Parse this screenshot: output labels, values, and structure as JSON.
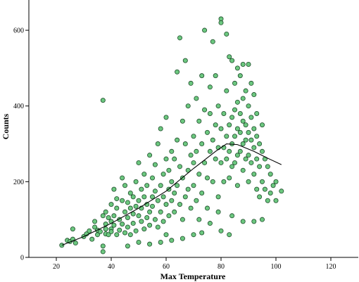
{
  "chart_data": {
    "type": "scatter",
    "title": "",
    "xlabel": "Max Temperature",
    "ylabel": "Counts",
    "xlim": [
      10,
      130
    ],
    "ylim": [
      0,
      680
    ],
    "x_ticks": [
      20,
      40,
      60,
      80,
      100,
      120
    ],
    "y_ticks": [
      0,
      200,
      400,
      600
    ],
    "grid": false,
    "legend": "none",
    "colors": {
      "point_fill": "#6cc77f",
      "point_stroke": "#1e4d2b",
      "fit_line": "#000000",
      "axis": "#000000"
    },
    "fit_line": {
      "type": "loess",
      "points": [
        [
          22,
          32
        ],
        [
          30,
          55
        ],
        [
          40,
          90
        ],
        [
          50,
          130
        ],
        [
          60,
          175
        ],
        [
          70,
          235
        ],
        [
          78,
          280
        ],
        [
          82,
          300
        ],
        [
          86,
          298
        ],
        [
          92,
          280
        ],
        [
          97,
          262
        ],
        [
          102,
          245
        ]
      ]
    },
    "series": [
      {
        "points": [
          [
            22,
            32
          ],
          [
            24,
            45
          ],
          [
            25,
            42
          ],
          [
            26,
            48
          ],
          [
            26,
            75
          ],
          [
            27,
            38
          ],
          [
            30,
            55
          ],
          [
            31,
            62
          ],
          [
            32,
            70
          ],
          [
            33,
            48
          ],
          [
            34,
            80
          ],
          [
            34,
            95
          ],
          [
            35,
            60
          ],
          [
            35,
            72
          ],
          [
            36,
            68
          ],
          [
            37,
            110
          ],
          [
            37,
            415
          ],
          [
            37,
            30
          ],
          [
            37,
            15
          ],
          [
            38,
            75
          ],
          [
            38,
            62
          ],
          [
            38,
            120
          ],
          [
            38,
            88
          ],
          [
            39,
            105
          ],
          [
            39,
            60
          ],
          [
            40,
            140
          ],
          [
            40,
            75
          ],
          [
            40,
            95
          ],
          [
            40,
            68
          ],
          [
            41,
            180
          ],
          [
            41,
            110
          ],
          [
            41,
            85
          ],
          [
            42,
            130
          ],
          [
            42,
            60
          ],
          [
            42,
            155
          ],
          [
            43,
            100
          ],
          [
            43,
            72
          ],
          [
            44,
            150
          ],
          [
            44,
            210
          ],
          [
            44,
            88
          ],
          [
            45,
            120
          ],
          [
            45,
            65
          ],
          [
            45,
            190
          ],
          [
            46,
            145
          ],
          [
            46,
            105
          ],
          [
            46,
            80
          ],
          [
            47,
            170
          ],
          [
            47,
            60
          ],
          [
            47,
            130
          ],
          [
            48,
            115
          ],
          [
            48,
            160
          ],
          [
            48,
            90
          ],
          [
            49,
            200
          ],
          [
            49,
            135
          ],
          [
            49,
            70
          ],
          [
            50,
            150
          ],
          [
            50,
            110
          ],
          [
            50,
            250
          ],
          [
            51,
            180
          ],
          [
            51,
            95
          ],
          [
            51,
            130
          ],
          [
            52,
            220
          ],
          [
            52,
            160
          ],
          [
            52,
            75
          ],
          [
            53,
            140
          ],
          [
            53,
            105
          ],
          [
            53,
            190
          ],
          [
            54,
            270
          ],
          [
            54,
            120
          ],
          [
            54,
            85
          ],
          [
            55,
            160
          ],
          [
            55,
            210
          ],
          [
            55,
            135
          ],
          [
            56,
            100
          ],
          [
            56,
            245
          ],
          [
            56,
            175
          ],
          [
            57,
            300
          ],
          [
            57,
            150
          ],
          [
            57,
            80
          ],
          [
            58,
            340
          ],
          [
            58,
            190
          ],
          [
            58,
            120
          ],
          [
            59,
            220
          ],
          [
            59,
            160
          ],
          [
            59,
            95
          ],
          [
            60,
            260
          ],
          [
            60,
            140
          ],
          [
            60,
            370
          ],
          [
            60,
            60
          ],
          [
            61,
            180
          ],
          [
            61,
            230
          ],
          [
            61,
            110
          ],
          [
            62,
            200
          ],
          [
            62,
            150
          ],
          [
            62,
            280
          ],
          [
            63,
            170
          ],
          [
            63,
            120
          ],
          [
            63,
            260
          ],
          [
            64,
            490
          ],
          [
            64,
            310
          ],
          [
            64,
            190
          ],
          [
            65,
            580
          ],
          [
            65,
            240
          ],
          [
            65,
            140
          ],
          [
            66,
            210
          ],
          [
            66,
            360
          ],
          [
            66,
            100
          ],
          [
            67,
            300
          ],
          [
            67,
            160
          ],
          [
            67,
            520
          ],
          [
            68,
            230
          ],
          [
            68,
            180
          ],
          [
            68,
            400
          ],
          [
            69,
            270
          ],
          [
            69,
            130
          ],
          [
            69,
            460
          ],
          [
            70,
            250
          ],
          [
            70,
            320
          ],
          [
            70,
            190
          ],
          [
            71,
            420
          ],
          [
            71,
            280
          ],
          [
            71,
            150
          ],
          [
            72,
            360
          ],
          [
            72,
            220
          ],
          [
            72,
            100
          ],
          [
            73,
            480
          ],
          [
            73,
            300
          ],
          [
            73,
            170
          ],
          [
            74,
            600
          ],
          [
            74,
            250
          ],
          [
            74,
            390
          ],
          [
            75,
            330
          ],
          [
            75,
            210
          ],
          [
            75,
            130
          ],
          [
            76,
            450
          ],
          [
            76,
            280
          ],
          [
            76,
            380
          ],
          [
            77,
            570
          ],
          [
            77,
            310
          ],
          [
            77,
            200
          ],
          [
            78,
            480
          ],
          [
            78,
            260
          ],
          [
            78,
            350
          ],
          [
            79,
            290
          ],
          [
            79,
            400
          ],
          [
            79,
            160
          ],
          [
            80,
            630
          ],
          [
            80,
            620
          ],
          [
            80,
            340
          ],
          [
            80,
            250
          ],
          [
            81,
            380
          ],
          [
            81,
            290
          ],
          [
            81,
            200
          ],
          [
            82,
            590
          ],
          [
            82,
            320
          ],
          [
            82,
            260
          ],
          [
            82,
            440
          ],
          [
            83,
            530
          ],
          [
            83,
            350
          ],
          [
            83,
            280
          ],
          [
            83,
            210
          ],
          [
            84,
            520
          ],
          [
            84,
            370
          ],
          [
            84,
            300
          ],
          [
            84,
            240
          ],
          [
            85,
            460
          ],
          [
            85,
            390
          ],
          [
            85,
            320
          ],
          [
            85,
            250
          ],
          [
            86,
            500
          ],
          [
            86,
            410
          ],
          [
            86,
            340
          ],
          [
            86,
            270
          ],
          [
            86,
            190
          ],
          [
            87,
            480
          ],
          [
            87,
            380
          ],
          [
            87,
            330
          ],
          [
            87,
            280
          ],
          [
            88,
            510
          ],
          [
            88,
            420
          ],
          [
            88,
            360
          ],
          [
            88,
            300
          ],
          [
            88,
            230
          ],
          [
            89,
            440
          ],
          [
            89,
            350
          ],
          [
            89,
            310
          ],
          [
            89,
            260
          ],
          [
            90,
            510
          ],
          [
            90,
            400
          ],
          [
            90,
            330
          ],
          [
            90,
            270
          ],
          [
            90,
            200
          ],
          [
            91,
            460
          ],
          [
            91,
            370
          ],
          [
            91,
            310
          ],
          [
            91,
            250
          ],
          [
            92,
            430
          ],
          [
            92,
            340
          ],
          [
            92,
            290
          ],
          [
            92,
            220
          ],
          [
            93,
            380
          ],
          [
            93,
            320
          ],
          [
            93,
            260
          ],
          [
            93,
            180
          ],
          [
            94,
            300
          ],
          [
            94,
            240
          ],
          [
            94,
            160
          ],
          [
            95,
            350
          ],
          [
            95,
            280
          ],
          [
            95,
            200
          ],
          [
            96,
            260
          ],
          [
            96,
            180
          ],
          [
            97,
            240
          ],
          [
            97,
            150
          ],
          [
            98,
            220
          ],
          [
            98,
            170
          ],
          [
            99,
            190
          ],
          [
            100,
            200
          ],
          [
            100,
            150
          ],
          [
            102,
            175
          ],
          [
            73,
            65
          ],
          [
            76,
            90
          ],
          [
            80,
            70
          ],
          [
            84,
            110
          ],
          [
            88,
            95
          ],
          [
            92,
            95
          ],
          [
            95,
            100
          ],
          [
            79,
            120
          ],
          [
            83,
            60
          ],
          [
            70,
            60
          ],
          [
            66,
            50
          ],
          [
            62,
            45
          ],
          [
            58,
            40
          ],
          [
            54,
            35
          ],
          [
            50,
            40
          ],
          [
            46,
            30
          ]
        ]
      }
    ]
  }
}
